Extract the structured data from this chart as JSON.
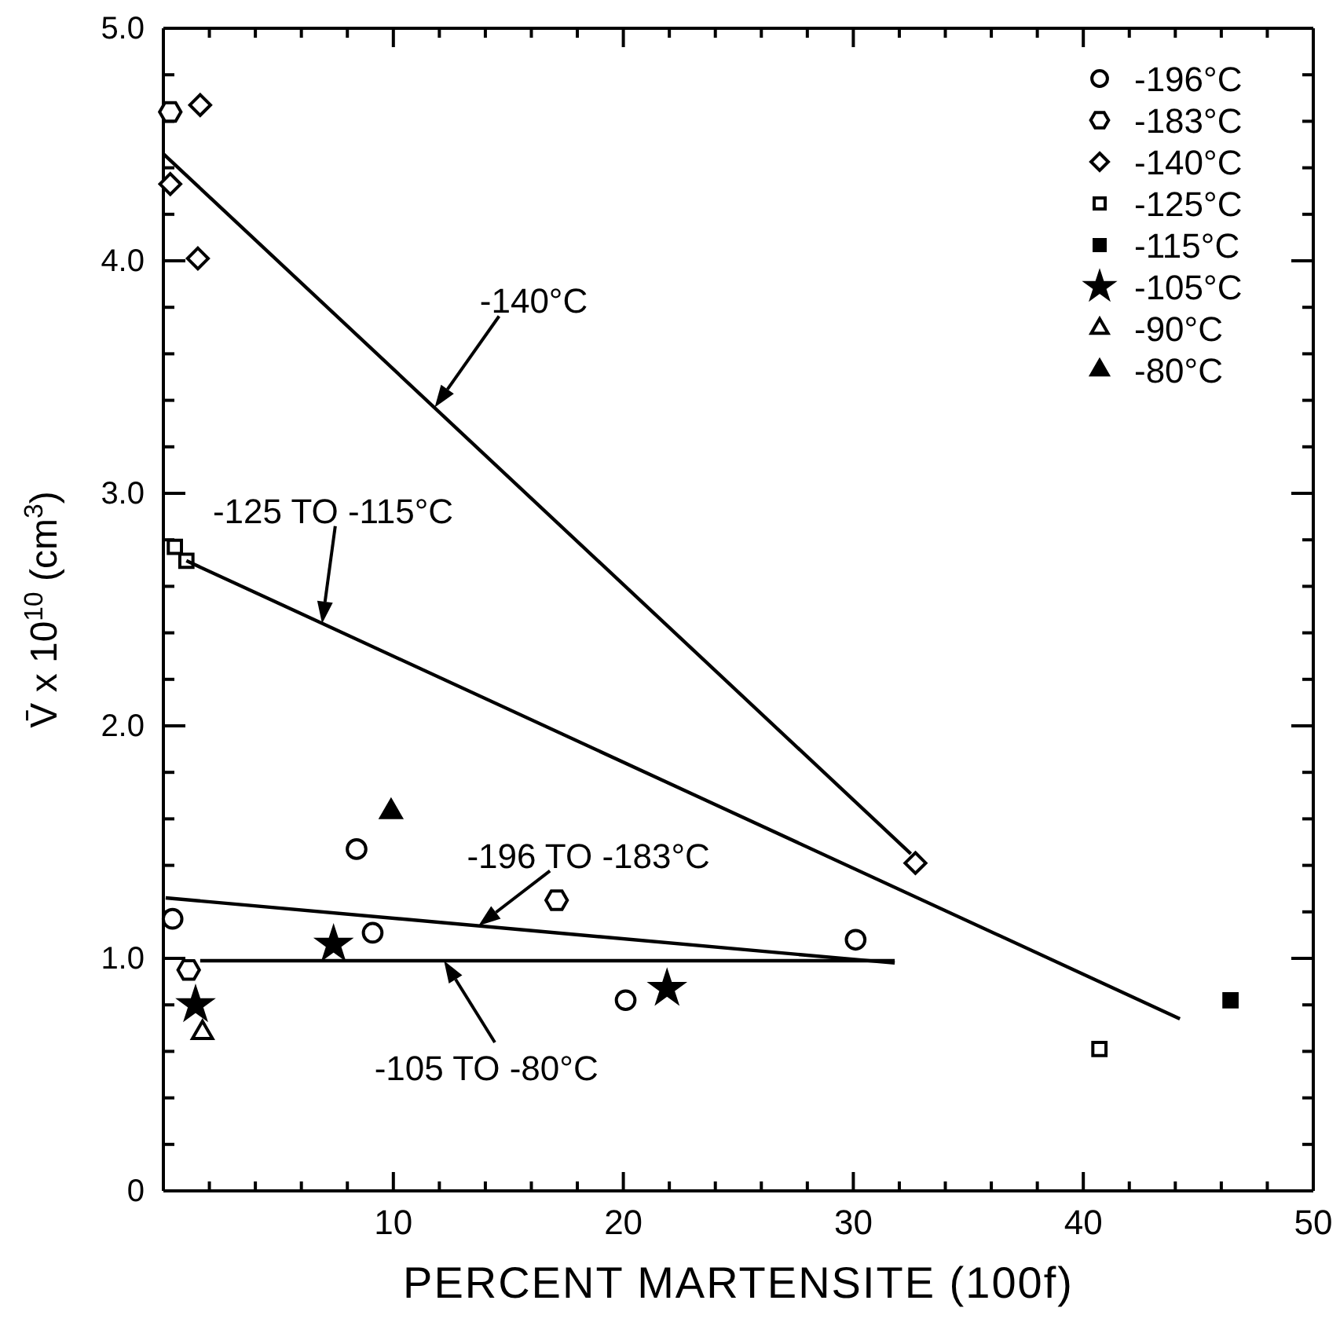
{
  "chart_data": {
    "type": "scatter",
    "xlabel": "PERCENT MARTENSITE (100f)",
    "ylabel": "V̄ x 10$^{10}$ (cm$^{3}$)",
    "xlim": [
      0,
      50
    ],
    "ylim": [
      0,
      5
    ],
    "xticks": [
      {
        "value": 0,
        "label": null
      },
      {
        "value": 2,
        "label": null
      },
      {
        "value": 4,
        "label": null
      },
      {
        "value": 6,
        "label": null
      },
      {
        "value": 8,
        "label": null
      },
      10,
      {
        "value": 12,
        "label": null
      },
      {
        "value": 14,
        "label": null
      },
      {
        "value": 16,
        "label": null
      },
      {
        "value": 18,
        "label": null
      },
      20,
      {
        "value": 22,
        "label": null
      },
      {
        "value": 24,
        "label": null
      },
      {
        "value": 26,
        "label": null
      },
      {
        "value": 28,
        "label": null
      },
      30,
      {
        "value": 32,
        "label": null
      },
      {
        "value": 34,
        "label": null
      },
      {
        "value": 36,
        "label": null
      },
      {
        "value": 38,
        "label": null
      },
      40,
      {
        "value": 42,
        "label": null
      },
      {
        "value": 44,
        "label": null
      },
      {
        "value": 46,
        "label": null
      },
      {
        "value": 48,
        "label": null
      },
      50
    ],
    "yticks": [
      0,
      {
        "value": 0.2,
        "label": null
      },
      {
        "value": 0.4,
        "label": null
      },
      {
        "value": 0.6,
        "label": null
      },
      {
        "value": 0.8,
        "label": null
      },
      {
        "value": 1,
        "label": "1.0"
      },
      {
        "value": 1.2,
        "label": null
      },
      {
        "value": 1.4,
        "label": null
      },
      {
        "value": 1.6,
        "label": null
      },
      {
        "value": 1.8,
        "label": null
      },
      {
        "value": 2,
        "label": "2.0"
      },
      {
        "value": 2.2,
        "label": null
      },
      {
        "value": 2.4,
        "label": null
      },
      {
        "value": 2.6,
        "label": null
      },
      {
        "value": 2.8,
        "label": null
      },
      {
        "value": 3,
        "label": "3.0"
      },
      {
        "value": 3.2,
        "label": null
      },
      {
        "value": 3.4,
        "label": null
      },
      {
        "value": 3.6,
        "label": null
      },
      {
        "value": 3.8,
        "label": null
      },
      {
        "value": 4,
        "label": "4.0"
      },
      {
        "value": 4.2,
        "label": null
      },
      {
        "value": 4.4,
        "label": null
      },
      {
        "value": 4.6,
        "label": null
      },
      {
        "value": 4.8,
        "label": null
      },
      {
        "value": 5,
        "label": "5.0"
      }
    ],
    "grid": false,
    "legend": "top right",
    "series": [
      {
        "name": "-196°C",
        "color": "#000000",
        "marker": "circle",
        "x": [
          0.4,
          8.4,
          9.1,
          20.1,
          30.1
        ],
        "values": [
          1.17,
          1.47,
          1.11,
          0.82,
          1.08
        ]
      },
      {
        "name": "-183°C",
        "color": "#000000",
        "marker": "circle",
        "x": [
          0.3,
          1.1,
          17.1
        ],
        "values": [
          4.64,
          0.95,
          1.25
        ]
      },
      {
        "name": "-140°C",
        "color": "#000000",
        "marker": "diamond",
        "x": [
          0.3,
          1.6,
          1.5,
          32.7
        ],
        "values": [
          4.33,
          4.67,
          4.01,
          1.41
        ]
      },
      {
        "name": "-125°C",
        "color": "#000000",
        "marker": "square",
        "x": [
          0.5,
          1.0,
          40.7
        ],
        "values": [
          2.77,
          2.71,
          0.61
        ]
      },
      {
        "name": "-115°C",
        "color": "#000000",
        "marker": "square",
        "x": [
          46.4
        ],
        "values": [
          0.82
        ]
      },
      {
        "name": "-105°C",
        "color": "#000000",
        "marker": "star",
        "x": [
          1.4,
          7.4,
          21.9
        ],
        "values": [
          0.8,
          1.06,
          0.87
        ]
      },
      {
        "name": "-90°C",
        "color": "#000000",
        "marker": "triangle",
        "x": [
          1.7
        ],
        "values": [
          0.68
        ]
      },
      {
        "name": "-80°C",
        "color": "#000000",
        "marker": "triangle",
        "x": [
          9.9
        ],
        "values": [
          1.63
        ]
      },
      {
        "type": "line",
        "color": "#000000",
        "x": [
          0,
          32.5
        ],
        "values": [
          4.46,
          1.45
        ]
      },
      {
        "type": "line",
        "color": "#000000",
        "x": [
          1.0,
          44.2
        ],
        "values": [
          2.71,
          0.74
        ]
      },
      {
        "type": "line",
        "color": "#000000",
        "x": [
          0.1,
          31.8
        ],
        "values": [
          1.26,
          0.98
        ]
      },
      {
        "type": "line",
        "color": "#000000",
        "x": [
          1.6,
          31.8
        ],
        "values": [
          0.99,
          0.99
        ]
      }
    ],
    "annotations": [
      {
        "text": "-140°C",
        "x": 11.8,
        "y": 3.37
      },
      {
        "text": "-125 TO -115°C",
        "x": 6.9,
        "y": 2.44
      },
      {
        "text": "-196 TO -183°C",
        "x": 13.7,
        "y": 1.14
      },
      {
        "text": "-105 TO -80°C",
        "x": 12.2,
        "y": 0.99
      }
    ]
  }
}
